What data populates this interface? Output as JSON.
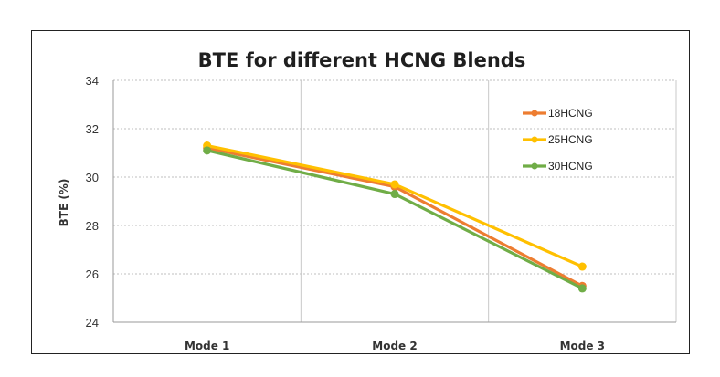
{
  "chart_data": {
    "type": "line",
    "title": "BTE for different HCNG Blends",
    "xlabel": "",
    "ylabel": "BTE (%)",
    "categories": [
      "Mode 1",
      "Mode 2",
      "Mode 3"
    ],
    "ylim": [
      24,
      34
    ],
    "yticks": [
      24,
      26,
      28,
      30,
      32,
      34
    ],
    "grid": true,
    "legend_position": "top-right",
    "series": [
      {
        "name": "18HCNG",
        "color": "#ED7D31",
        "values": [
          31.2,
          29.6,
          25.5
        ]
      },
      {
        "name": "25HCNG",
        "color": "#FFC000",
        "values": [
          31.3,
          29.7,
          26.3
        ]
      },
      {
        "name": "30HCNG",
        "color": "#70AD47",
        "values": [
          31.1,
          29.3,
          25.4
        ]
      }
    ]
  }
}
